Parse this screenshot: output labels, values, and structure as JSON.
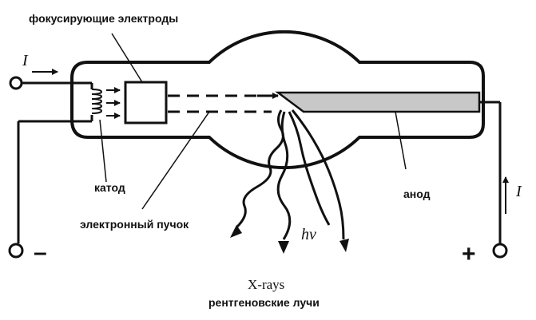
{
  "labels": {
    "focusing_electrodes": "фокусирующие электроды",
    "cathode": "катод",
    "electron_beam": "электронный  пучок",
    "anode": "анод",
    "photon": "hv",
    "xrays_en": "X-rays",
    "xrays_ru": "рентгеновские лучи",
    "current_left": "I",
    "current_right": "I",
    "minus": "–",
    "plus": "+"
  }
}
